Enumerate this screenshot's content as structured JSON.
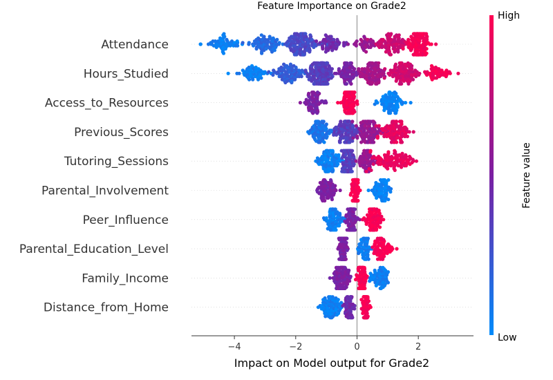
{
  "chart_data": {
    "type": "scatter",
    "subtype": "shap-beeswarm",
    "title": "Feature Importance on Grade2",
    "xlabel": "Impact on Model output for Grade2",
    "xlim": [
      -5.4,
      3.8
    ],
    "xticks": [
      -4,
      -2,
      0,
      2
    ],
    "xtick_labels": [
      "−4",
      "−2",
      "0",
      "2"
    ],
    "colorbar": {
      "label": "Feature value",
      "high": "High",
      "low": "Low",
      "high_color": "#ff0052",
      "low_color": "#008bfb",
      "mid_color": "#7b1fa2"
    },
    "grid": false,
    "features": [
      {
        "name": "Attendance",
        "clusters": [
          {
            "x": -5.1,
            "spread": 0.05,
            "v": 0.0,
            "n": 2
          },
          {
            "x": -4.3,
            "spread": 0.55,
            "v": 0.05,
            "n": 60
          },
          {
            "x": -3.0,
            "spread": 0.6,
            "v": 0.15,
            "n": 80
          },
          {
            "x": -1.8,
            "spread": 0.45,
            "v": 0.3,
            "n": 140
          },
          {
            "x": -0.8,
            "spread": 0.45,
            "v": 0.45,
            "n": 60
          },
          {
            "x": 0.3,
            "spread": 0.35,
            "v": 0.62,
            "n": 40
          },
          {
            "x": 1.1,
            "spread": 0.45,
            "v": 0.8,
            "n": 90
          },
          {
            "x": 2.0,
            "spread": 0.35,
            "v": 0.97,
            "n": 160
          }
        ]
      },
      {
        "name": "Hours_Studied",
        "clusters": [
          {
            "x": -4.2,
            "spread": 0.05,
            "v": 0.0,
            "n": 1
          },
          {
            "x": -3.4,
            "spread": 0.5,
            "v": 0.05,
            "n": 60
          },
          {
            "x": -2.3,
            "spread": 0.5,
            "v": 0.2,
            "n": 90
          },
          {
            "x": -1.2,
            "spread": 0.45,
            "v": 0.35,
            "n": 160
          },
          {
            "x": -0.3,
            "spread": 0.3,
            "v": 0.5,
            "n": 80
          },
          {
            "x": 0.5,
            "spread": 0.4,
            "v": 0.65,
            "n": 110
          },
          {
            "x": 1.5,
            "spread": 0.5,
            "v": 0.82,
            "n": 110
          },
          {
            "x": 2.6,
            "spread": 0.4,
            "v": 0.97,
            "n": 50
          },
          {
            "x": 3.3,
            "spread": 0.03,
            "v": 1.0,
            "n": 1
          }
        ]
      },
      {
        "name": "Access_to_Resources",
        "clusters": [
          {
            "x": -1.4,
            "spread": 0.3,
            "v": 0.5,
            "n": 70
          },
          {
            "x": -0.25,
            "spread": 0.2,
            "v": 0.98,
            "n": 120
          },
          {
            "x": 1.1,
            "spread": 0.4,
            "v": 0.03,
            "n": 90
          }
        ]
      },
      {
        "name": "Previous_Scores",
        "clusters": [
          {
            "x": -1.2,
            "spread": 0.35,
            "v": 0.1,
            "n": 90
          },
          {
            "x": -0.3,
            "spread": 0.35,
            "v": 0.35,
            "n": 130
          },
          {
            "x": 0.4,
            "spread": 0.35,
            "v": 0.6,
            "n": 110
          },
          {
            "x": 1.2,
            "spread": 0.45,
            "v": 0.9,
            "n": 110
          }
        ]
      },
      {
        "name": "Tutoring_Sessions",
        "clusters": [
          {
            "x": -0.9,
            "spread": 0.4,
            "v": 0.05,
            "n": 100
          },
          {
            "x": -0.3,
            "spread": 0.2,
            "v": 0.35,
            "n": 120
          },
          {
            "x": 0.3,
            "spread": 0.25,
            "v": 0.6,
            "n": 70
          },
          {
            "x": 1.2,
            "spread": 0.7,
            "v": 0.92,
            "n": 110
          }
        ]
      },
      {
        "name": "Parental_Involvement",
        "clusters": [
          {
            "x": -1.0,
            "spread": 0.35,
            "v": 0.5,
            "n": 80
          },
          {
            "x": -0.05,
            "spread": 0.12,
            "v": 0.98,
            "n": 110
          },
          {
            "x": 0.8,
            "spread": 0.35,
            "v": 0.03,
            "n": 80
          }
        ]
      },
      {
        "name": "Peer_Influence",
        "clusters": [
          {
            "x": -0.75,
            "spread": 0.25,
            "v": 0.05,
            "n": 80
          },
          {
            "x": -0.2,
            "spread": 0.15,
            "v": 0.5,
            "n": 110
          },
          {
            "x": 0.55,
            "spread": 0.25,
            "v": 0.98,
            "n": 100
          }
        ]
      },
      {
        "name": "Parental_Education_Level",
        "clusters": [
          {
            "x": -0.45,
            "spread": 0.15,
            "v": 0.5,
            "n": 100
          },
          {
            "x": 0.25,
            "spread": 0.2,
            "v": 0.05,
            "n": 60
          },
          {
            "x": 0.8,
            "spread": 0.3,
            "v": 0.98,
            "n": 80
          }
        ]
      },
      {
        "name": "Family_Income",
        "clusters": [
          {
            "x": -0.5,
            "spread": 0.25,
            "v": 0.5,
            "n": 120
          },
          {
            "x": 0.15,
            "spread": 0.15,
            "v": 0.98,
            "n": 100
          },
          {
            "x": 0.75,
            "spread": 0.3,
            "v": 0.05,
            "n": 70
          }
        ]
      },
      {
        "name": "Distance_from_Home",
        "clusters": [
          {
            "x": -0.85,
            "spread": 0.35,
            "v": 0.05,
            "n": 90
          },
          {
            "x": -0.25,
            "spread": 0.15,
            "v": 0.45,
            "n": 60
          },
          {
            "x": 0.28,
            "spread": 0.12,
            "v": 0.98,
            "n": 80
          }
        ]
      }
    ]
  }
}
